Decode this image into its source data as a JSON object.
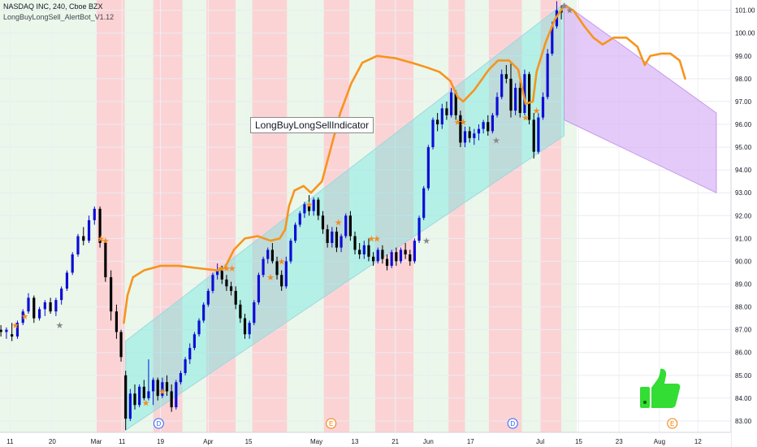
{
  "header": {
    "symbol_line": "NASDAQ INC, 240, Cboe BZX",
    "indicator_line": "LongBuyLongSell_AlertBot_V1.12"
  },
  "annotation": {
    "text": "LongBuyLongSellIndicator"
  },
  "event_markers": [
    {
      "label": "D",
      "x": 3.4,
      "color": "#2962ff"
    },
    {
      "label": "E",
      "x": 12.8,
      "color": "#f57c00"
    },
    {
      "label": "D",
      "x": 22.7,
      "color": "#2962ff"
    },
    {
      "label": "E",
      "x": 31.4,
      "color": "#f57c00"
    }
  ],
  "icons": {
    "thumbs_up": "thumbs-up-icon"
  },
  "colors": {
    "bull": "#0d0dd6",
    "bear": "#000000",
    "curve": "#f7941d",
    "channel_fill": "#5be6e0",
    "forecast_fill": "#d8b3f5",
    "green_band": "#eaf7ea",
    "red_band": "#fbd3d5",
    "star": "#f28c28",
    "thumb": "#33dd33"
  },
  "chart_data": {
    "type": "candlestick",
    "x_unit": "date",
    "x_ticks": [
      {
        "x": -4.7,
        "label": "11"
      },
      {
        "x": -2.4,
        "label": "20"
      },
      {
        "x": 0,
        "label": "Mar"
      },
      {
        "x": 1.4,
        "label": "11"
      },
      {
        "x": 3.5,
        "label": "19"
      },
      {
        "x": 6.1,
        "label": "Apr"
      },
      {
        "x": 8.3,
        "label": "15"
      },
      {
        "x": 12.0,
        "label": "May"
      },
      {
        "x": 14.1,
        "label": "13"
      },
      {
        "x": 16.3,
        "label": "21"
      },
      {
        "x": 18.1,
        "label": "Jun"
      },
      {
        "x": 20.4,
        "label": "17"
      },
      {
        "x": 24.2,
        "label": "Jul"
      },
      {
        "x": 26.3,
        "label": "15"
      },
      {
        "x": 28.5,
        "label": "23"
      },
      {
        "x": 30.7,
        "label": "Aug"
      },
      {
        "x": 32.8,
        "label": "12"
      }
    ],
    "x_range": [
      -5.25,
      34.6
    ],
    "y_ticks": [
      83,
      84,
      85,
      86,
      87,
      88,
      89,
      90,
      91,
      92,
      93,
      94,
      95,
      96,
      97,
      98,
      99,
      100,
      101
    ],
    "y_tick_labels": [
      "83.00",
      "84.00",
      "85.00",
      "86.00",
      "87.00",
      "88.00",
      "89.00",
      "90.00",
      "91.00",
      "92.00",
      "93.00",
      "94.00",
      "95.00",
      "96.00",
      "97.00",
      "98.00",
      "99.00",
      "100.00",
      "101.00"
    ],
    "ylim": [
      82.5,
      101.45
    ],
    "candles": [
      [
        -5.2,
        87.0,
        87.2,
        86.7,
        86.9
      ],
      [
        -4.9,
        86.9,
        87.1,
        86.6,
        87.0
      ],
      [
        -4.6,
        86.8,
        87.3,
        86.5,
        86.7
      ],
      [
        -4.3,
        86.7,
        87.4,
        86.6,
        87.3
      ],
      [
        -4.0,
        87.3,
        87.9,
        87.2,
        87.8
      ],
      [
        -3.7,
        87.8,
        88.6,
        87.7,
        88.4
      ],
      [
        -3.4,
        88.4,
        88.5,
        87.3,
        87.5
      ],
      [
        -3.1,
        87.5,
        88.0,
        87.4,
        87.9
      ],
      [
        -2.8,
        87.9,
        88.3,
        87.6,
        88.2
      ],
      [
        -2.5,
        88.2,
        88.4,
        87.7,
        87.8
      ],
      [
        -2.2,
        87.8,
        88.4,
        87.6,
        88.3
      ],
      [
        -1.9,
        88.3,
        88.9,
        88.1,
        88.8
      ],
      [
        -1.6,
        88.8,
        89.6,
        88.7,
        89.5
      ],
      [
        -1.3,
        89.5,
        90.4,
        89.4,
        90.3
      ],
      [
        -1.0,
        90.3,
        91.2,
        90.2,
        91.1
      ],
      [
        -0.7,
        91.1,
        91.5,
        90.7,
        90.9
      ],
      [
        -0.4,
        90.9,
        92.0,
        90.8,
        91.8
      ],
      [
        -0.1,
        91.8,
        92.4,
        91.6,
        92.3
      ],
      [
        0.2,
        92.3,
        92.4,
        90.6,
        90.8
      ],
      [
        0.5,
        90.8,
        91.0,
        89.1,
        89.3
      ],
      [
        0.8,
        89.3,
        89.6,
        87.4,
        87.8
      ],
      [
        1.1,
        87.8,
        88.1,
        86.6,
        86.9
      ],
      [
        1.35,
        86.9,
        87.0,
        85.6,
        85.8
      ],
      [
        1.6,
        85.0,
        85.2,
        82.6,
        83.1
      ],
      [
        1.85,
        83.1,
        84.4,
        83.0,
        84.2
      ],
      [
        2.1,
        84.2,
        84.6,
        83.5,
        83.7
      ],
      [
        2.35,
        83.7,
        84.6,
        83.6,
        84.5
      ],
      [
        2.6,
        84.5,
        84.8,
        83.9,
        84.0
      ],
      [
        2.85,
        84.0,
        85.7,
        83.9,
        84.3
      ],
      [
        3.1,
        84.3,
        84.9,
        83.7,
        84.8
      ],
      [
        3.35,
        84.8,
        84.9,
        83.9,
        84.1
      ],
      [
        3.6,
        84.1,
        84.9,
        84.0,
        84.7
      ],
      [
        3.85,
        84.7,
        85.0,
        84.1,
        84.3
      ],
      [
        4.1,
        84.3,
        84.6,
        83.4,
        83.6
      ],
      [
        4.35,
        83.6,
        84.8,
        83.5,
        84.7
      ],
      [
        4.6,
        84.7,
        85.2,
        84.6,
        85.1
      ],
      [
        4.85,
        85.1,
        85.8,
        85.0,
        85.7
      ],
      [
        5.1,
        85.7,
        86.4,
        85.5,
        86.2
      ],
      [
        5.35,
        86.2,
        86.9,
        86.1,
        86.8
      ],
      [
        5.6,
        86.8,
        87.5,
        86.7,
        87.4
      ],
      [
        5.85,
        87.4,
        88.2,
        87.3,
        88.1
      ],
      [
        6.1,
        88.1,
        88.8,
        88.0,
        88.7
      ],
      [
        6.35,
        88.7,
        89.5,
        88.6,
        89.4
      ],
      [
        6.6,
        89.4,
        89.9,
        89.2,
        89.6
      ],
      [
        6.85,
        89.6,
        89.8,
        89.0,
        89.2
      ],
      [
        7.1,
        89.2,
        89.4,
        88.7,
        88.9
      ],
      [
        7.35,
        88.9,
        89.1,
        88.5,
        88.7
      ],
      [
        7.6,
        88.7,
        88.9,
        87.9,
        88.1
      ],
      [
        7.85,
        88.1,
        88.3,
        87.3,
        87.5
      ],
      [
        8.1,
        87.5,
        87.7,
        86.6,
        86.8
      ],
      [
        8.35,
        86.8,
        87.4,
        86.6,
        87.3
      ],
      [
        8.6,
        87.3,
        88.3,
        87.2,
        88.2
      ],
      [
        8.85,
        88.2,
        89.5,
        88.1,
        89.4
      ],
      [
        9.1,
        89.4,
        90.2,
        89.3,
        90.1
      ],
      [
        9.35,
        90.1,
        90.6,
        89.9,
        90.5
      ],
      [
        9.6,
        90.5,
        90.8,
        89.9,
        90.0
      ],
      [
        9.85,
        90.0,
        90.2,
        89.2,
        89.4
      ],
      [
        10.1,
        89.4,
        89.6,
        88.7,
        88.9
      ],
      [
        10.35,
        88.9,
        90.2,
        88.8,
        90.0
      ],
      [
        10.6,
        90.0,
        91.0,
        89.9,
        90.9
      ],
      [
        10.85,
        90.9,
        91.7,
        90.8,
        91.6
      ],
      [
        11.1,
        91.6,
        92.2,
        91.5,
        92.1
      ],
      [
        11.35,
        92.1,
        92.6,
        91.9,
        92.5
      ],
      [
        11.6,
        92.5,
        92.9,
        92.0,
        92.2
      ],
      [
        11.85,
        92.2,
        92.8,
        92.0,
        92.7
      ],
      [
        12.1,
        92.7,
        92.8,
        91.8,
        92.0
      ],
      [
        12.35,
        92.0,
        92.2,
        91.2,
        91.4
      ],
      [
        12.6,
        91.4,
        91.6,
        90.6,
        90.8
      ],
      [
        12.85,
        90.8,
        91.5,
        90.6,
        91.3
      ],
      [
        13.1,
        91.3,
        91.5,
        90.4,
        90.6
      ],
      [
        13.35,
        90.6,
        91.2,
        90.4,
        91.1
      ],
      [
        13.6,
        91.1,
        92.1,
        91.0,
        92.0
      ],
      [
        13.85,
        92.0,
        92.2,
        90.9,
        91.1
      ],
      [
        14.1,
        91.1,
        91.3,
        90.3,
        90.5
      ],
      [
        14.35,
        90.5,
        90.8,
        90.1,
        90.3
      ],
      [
        14.6,
        90.3,
        90.9,
        90.1,
        90.7
      ],
      [
        14.85,
        90.7,
        91.0,
        90.0,
        90.2
      ],
      [
        15.1,
        90.2,
        90.4,
        89.8,
        90.0
      ],
      [
        15.35,
        90.0,
        90.6,
        89.9,
        90.5
      ],
      [
        15.6,
        90.5,
        90.7,
        89.9,
        90.1
      ],
      [
        15.85,
        90.1,
        90.3,
        89.6,
        89.8
      ],
      [
        16.1,
        89.8,
        90.5,
        89.7,
        90.4
      ],
      [
        16.35,
        90.4,
        90.6,
        89.8,
        90.0
      ],
      [
        16.6,
        90.0,
        90.6,
        89.9,
        90.5
      ],
      [
        16.85,
        90.5,
        90.8,
        90.1,
        90.3
      ],
      [
        17.1,
        90.3,
        90.5,
        89.8,
        90.0
      ],
      [
        17.35,
        90.0,
        91.0,
        89.9,
        90.9
      ],
      [
        17.6,
        90.9,
        92.0,
        90.8,
        91.9
      ],
      [
        17.85,
        91.9,
        93.3,
        91.8,
        93.2
      ],
      [
        18.1,
        93.2,
        95.1,
        93.1,
        95.0
      ],
      [
        18.35,
        95.0,
        96.3,
        94.9,
        96.2
      ],
      [
        18.6,
        96.2,
        96.5,
        95.7,
        96.0
      ],
      [
        18.85,
        96.0,
        96.9,
        95.8,
        96.7
      ],
      [
        19.1,
        96.7,
        97.0,
        96.2,
        96.4
      ],
      [
        19.35,
        96.4,
        97.6,
        96.3,
        97.4
      ],
      [
        19.6,
        97.4,
        97.5,
        96.2,
        96.4
      ],
      [
        19.85,
        96.4,
        96.6,
        95.0,
        95.2
      ],
      [
        20.1,
        95.2,
        95.9,
        95.0,
        95.7
      ],
      [
        20.35,
        95.7,
        95.9,
        95.2,
        95.4
      ],
      [
        20.6,
        95.4,
        95.8,
        95.1,
        95.6
      ],
      [
        20.85,
        95.6,
        96.0,
        95.3,
        95.8
      ],
      [
        21.1,
        95.8,
        96.2,
        95.6,
        96.1
      ],
      [
        21.35,
        96.1,
        96.4,
        95.5,
        95.7
      ],
      [
        21.6,
        95.7,
        96.5,
        95.6,
        96.4
      ],
      [
        21.85,
        96.4,
        97.4,
        96.3,
        97.2
      ],
      [
        22.1,
        97.2,
        98.4,
        97.1,
        98.2
      ],
      [
        22.35,
        98.2,
        98.6,
        97.8,
        98.0
      ],
      [
        22.6,
        98.0,
        98.7,
        96.3,
        96.6
      ],
      [
        22.85,
        96.6,
        97.8,
        96.4,
        97.6
      ],
      [
        23.1,
        97.6,
        97.9,
        96.3,
        96.5
      ],
      [
        23.35,
        96.5,
        98.4,
        96.4,
        98.2
      ],
      [
        23.6,
        98.2,
        98.3,
        96.0,
        96.2
      ],
      [
        23.85,
        96.2,
        96.5,
        94.5,
        94.8
      ],
      [
        24.1,
        94.8,
        96.5,
        94.7,
        96.3
      ],
      [
        24.35,
        96.3,
        97.4,
        96.2,
        97.2
      ],
      [
        24.6,
        97.2,
        99.3,
        97.1,
        99.1
      ],
      [
        24.85,
        99.1,
        100.5,
        99.0,
        100.3
      ],
      [
        25.1,
        100.3,
        101.4,
        100.2,
        101.0
      ],
      [
        25.35,
        101.0,
        101.2,
        100.6,
        100.9
      ]
    ],
    "channel": {
      "lower": [
        [
          1.6,
          82.6
        ],
        [
          25.5,
          95.5
        ]
      ],
      "upper": [
        [
          1.6,
          86.5
        ],
        [
          25.5,
          101.3
        ]
      ]
    },
    "forecast": {
      "upper": [
        [
          25.5,
          101.3
        ],
        [
          33.8,
          96.5
        ]
      ],
      "lower": [
        [
          25.5,
          96.2
        ],
        [
          33.8,
          93.0
        ]
      ]
    },
    "signal_curve": [
      [
        1.5,
        87.3
      ],
      [
        1.7,
        88.5
      ],
      [
        2.0,
        89.3
      ],
      [
        2.6,
        89.6
      ],
      [
        3.5,
        89.8
      ],
      [
        4.5,
        89.8
      ],
      [
        5.5,
        89.7
      ],
      [
        6.6,
        89.6
      ],
      [
        7.0,
        89.7
      ],
      [
        7.5,
        90.5
      ],
      [
        8.1,
        91.0
      ],
      [
        8.8,
        91.1
      ],
      [
        9.5,
        90.9
      ],
      [
        10.0,
        91.0
      ],
      [
        10.3,
        91.4
      ],
      [
        10.5,
        92.4
      ],
      [
        10.8,
        93.1
      ],
      [
        11.3,
        93.3
      ],
      [
        11.7,
        93.0
      ],
      [
        12.3,
        93.5
      ],
      [
        12.8,
        95.0
      ],
      [
        13.3,
        96.5
      ],
      [
        13.9,
        97.8
      ],
      [
        14.5,
        98.7
      ],
      [
        15.3,
        99.0
      ],
      [
        16.3,
        98.9
      ],
      [
        17.2,
        98.7
      ],
      [
        18.0,
        98.5
      ],
      [
        18.7,
        98.3
      ],
      [
        19.3,
        97.9
      ],
      [
        19.7,
        97.2
      ],
      [
        20.0,
        97.0
      ],
      [
        20.6,
        97.5
      ],
      [
        21.4,
        98.4
      ],
      [
        21.9,
        98.8
      ],
      [
        22.5,
        98.8
      ],
      [
        23.0,
        98.4
      ],
      [
        23.4,
        96.9
      ],
      [
        23.8,
        97.0
      ],
      [
        24.0,
        98.3
      ],
      [
        24.5,
        99.6
      ],
      [
        25.0,
        100.6
      ],
      [
        25.5,
        101.2
      ],
      [
        26.0,
        101.0
      ],
      [
        26.6,
        100.3
      ],
      [
        27.1,
        99.8
      ],
      [
        27.6,
        99.5
      ],
      [
        28.2,
        99.8
      ],
      [
        28.9,
        99.8
      ],
      [
        29.5,
        99.4
      ],
      [
        29.9,
        98.6
      ],
      [
        30.2,
        99.0
      ],
      [
        30.8,
        99.1
      ],
      [
        31.3,
        99.1
      ],
      [
        31.8,
        98.8
      ],
      [
        32.1,
        98.0
      ]
    ],
    "stars": [
      [
        -4.4,
        87.2,
        "#f28c28"
      ],
      [
        -3.9,
        87.6,
        "#f28c28"
      ],
      [
        -2.0,
        87.2,
        "#888888"
      ],
      [
        0.25,
        91.0,
        "#f28c28"
      ],
      [
        0.5,
        90.9,
        "#f28c28"
      ],
      [
        2.7,
        83.8,
        "#f28c28"
      ],
      [
        3.6,
        84.3,
        "#f28c28"
      ],
      [
        6.8,
        89.7,
        "#f28c28"
      ],
      [
        7.1,
        89.7,
        "#f28c28"
      ],
      [
        7.4,
        89.7,
        "#f28c28"
      ],
      [
        9.5,
        89.3,
        "#f28c28"
      ],
      [
        10.1,
        90.0,
        "#f28c28"
      ],
      [
        11.6,
        92.5,
        "#f28c28"
      ],
      [
        13.2,
        91.7,
        "#f28c28"
      ],
      [
        15.0,
        91.0,
        "#f28c28"
      ],
      [
        15.3,
        91.0,
        "#f28c28"
      ],
      [
        18.0,
        90.9,
        "#888888"
      ],
      [
        19.7,
        96.1,
        "#f28c28"
      ],
      [
        20.0,
        96.1,
        "#f28c28"
      ],
      [
        21.8,
        95.3,
        "#888888"
      ],
      [
        23.4,
        96.3,
        "#f28c28"
      ],
      [
        24.0,
        96.6,
        "#f28c28"
      ],
      [
        25.5,
        101.2,
        "#888888"
      ],
      [
        25.8,
        101.0,
        "#888888"
      ]
    ],
    "background_bands": [
      [
        -5.25,
        0.0,
        "g"
      ],
      [
        0.0,
        1.55,
        "r"
      ],
      [
        1.55,
        3.1,
        "g"
      ],
      [
        3.1,
        4.7,
        "r"
      ],
      [
        4.7,
        6.0,
        "g"
      ],
      [
        6.0,
        7.6,
        "r"
      ],
      [
        7.6,
        8.5,
        "g"
      ],
      [
        8.5,
        10.4,
        "r"
      ],
      [
        10.4,
        12.4,
        "g"
      ],
      [
        12.4,
        13.8,
        "r"
      ],
      [
        13.8,
        15.2,
        "g"
      ],
      [
        15.2,
        17.3,
        "r"
      ],
      [
        17.3,
        19.2,
        "g"
      ],
      [
        19.2,
        20.1,
        "r"
      ],
      [
        20.1,
        21.4,
        "g"
      ],
      [
        21.4,
        23.2,
        "r"
      ],
      [
        23.2,
        24.2,
        "g"
      ],
      [
        24.2,
        25.35,
        "r"
      ],
      [
        25.35,
        26.2,
        "g"
      ]
    ]
  }
}
